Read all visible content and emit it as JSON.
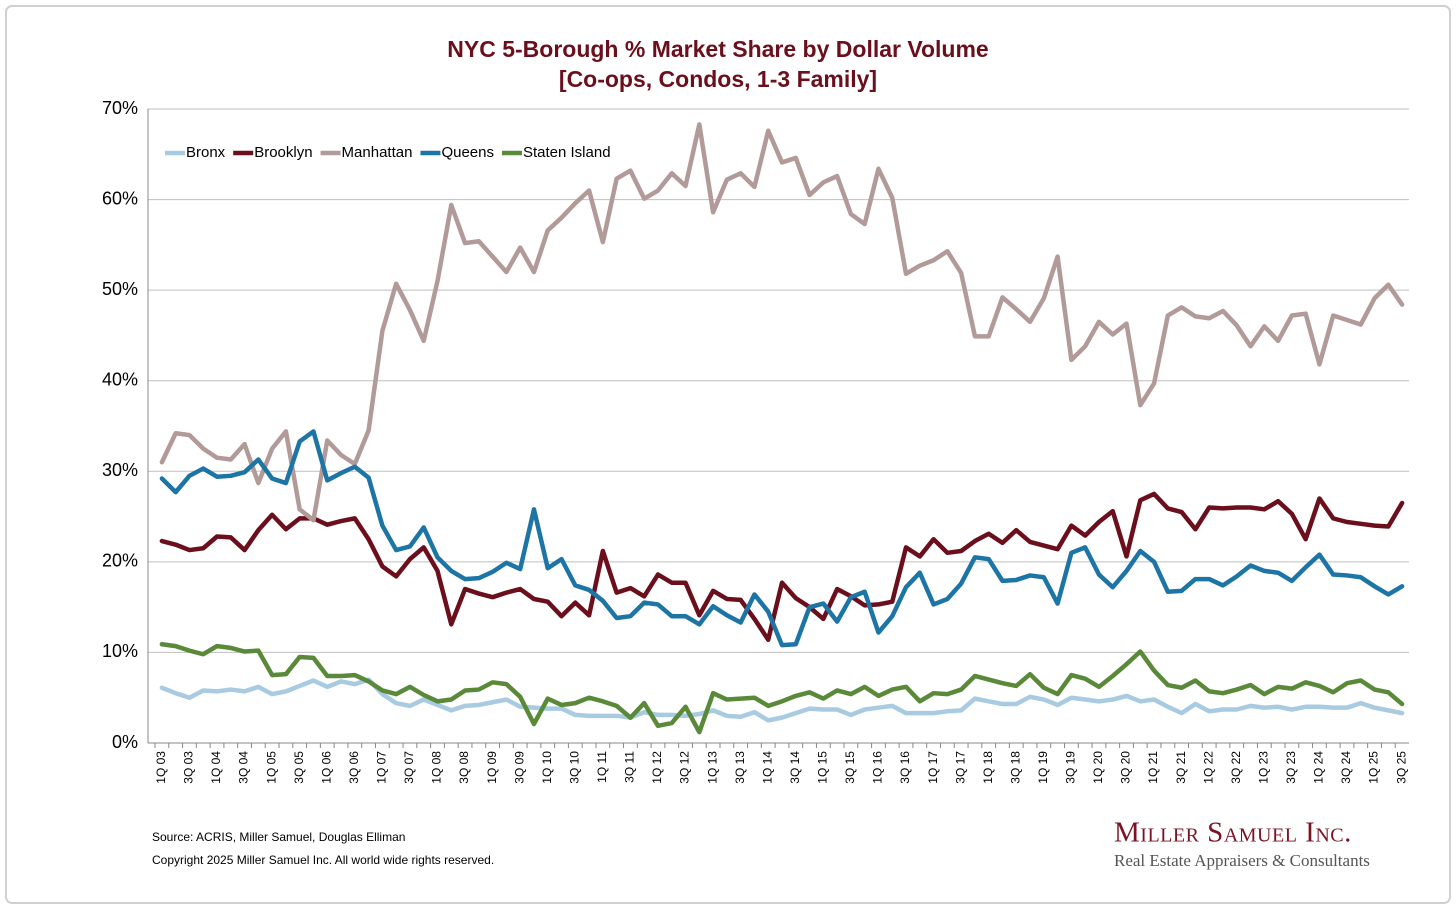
{
  "chart_data": {
    "type": "line",
    "title": "NYC 5-Borough % Market Share by Dollar Volume",
    "subtitle": "[Co-ops, Condos, 1-3 Family]",
    "source": "Source: ACRIS, Miller Samuel, Douglas Elliman",
    "copyright": "Copyright 2025 Miller Samuel Inc.  All world wide rights reserved.",
    "brand": "Miller Samuel Inc.",
    "brand_tagline": "Real Estate Appraisers & Consultants",
    "legend": "upper left",
    "grid": true,
    "categories": [
      "1Q 03",
      null,
      "3Q 03",
      null,
      "1Q 04",
      null,
      "3Q 04",
      null,
      "1Q 05",
      null,
      "3Q 05",
      null,
      "1Q 06",
      null,
      "3Q 06",
      null,
      "1Q 07",
      null,
      "3Q 07",
      null,
      "1Q 08",
      null,
      "3Q 08",
      null,
      "1Q 09",
      null,
      "3Q 09",
      null,
      "1Q 10",
      null,
      "3Q 10",
      null,
      "1Q 11",
      null,
      "3Q 11",
      null,
      "1Q 12",
      null,
      "3Q 12",
      null,
      "1Q 13",
      null,
      "3Q 13",
      null,
      "1Q 14",
      null,
      "3Q 14",
      null,
      "1Q 15",
      null,
      "3Q 15",
      null,
      "1Q 16",
      null,
      "3Q 16",
      null,
      "1Q 17",
      null,
      "3Q 17",
      null,
      "1Q 18",
      null,
      "3Q 18",
      null,
      "1Q 19",
      null,
      "3Q 19",
      null,
      "1Q 20",
      null,
      "3Q 20",
      null,
      "1Q 21",
      null,
      "3Q 21",
      null,
      "1Q 22",
      null,
      "3Q 22",
      null,
      "1Q 23",
      null,
      "3Q 23",
      null,
      "1Q 24",
      null,
      "3Q 24",
      null,
      "1Q 25",
      null,
      "3Q 25"
    ],
    "ylim": [
      0,
      70
    ],
    "yticks": [
      {
        "value": 0,
        "label": "0%"
      },
      {
        "value": 10,
        "label": "10%"
      },
      {
        "value": 20,
        "label": "20%"
      },
      {
        "value": 30,
        "label": "30%"
      },
      {
        "value": 40,
        "label": "40%"
      },
      {
        "value": 50,
        "label": "50%"
      },
      {
        "value": 60,
        "label": "60%"
      },
      {
        "value": 70,
        "label": "70%"
      }
    ],
    "series": [
      {
        "name": "Bronx",
        "color": "#a8cbe1",
        "values": [
          6.1,
          5.5,
          5,
          5.8,
          5.7,
          5.9,
          5.7,
          6.2,
          5.4,
          5.7,
          6.3,
          6.9,
          6.2,
          6.8,
          6.5,
          7,
          5.4,
          4.4,
          4.1,
          4.8,
          4.2,
          3.6,
          4.1,
          4.2,
          4.5,
          4.8,
          4,
          3.9,
          3.8,
          3.8,
          3.1,
          3,
          3,
          3,
          2.8,
          3.4,
          3.1,
          3.1,
          3,
          3.2,
          3.6,
          3,
          2.9,
          3.4,
          2.5,
          2.8,
          3.3,
          3.8,
          3.7,
          3.7,
          3.1,
          3.7,
          3.9,
          4.1,
          3.3,
          3.3,
          3.3,
          3.5,
          3.6,
          4.9,
          4.6,
          4.3,
          4.3,
          5.1,
          4.8,
          4.2,
          5,
          4.8,
          4.6,
          4.8,
          5.2,
          4.6,
          4.8,
          4,
          3.3,
          4.3,
          3.5,
          3.7,
          3.7,
          4.1,
          3.9,
          4,
          3.7,
          4,
          4,
          3.9,
          3.9,
          4.4,
          3.9,
          3.6,
          3.3
        ]
      },
      {
        "name": "Brooklyn",
        "color": "#6b0f1c",
        "values": [
          22.3,
          21.9,
          21.3,
          21.5,
          22.8,
          22.7,
          21.3,
          23.5,
          25.2,
          23.6,
          24.8,
          24.8,
          24.1,
          24.5,
          24.8,
          22.5,
          19.5,
          18.4,
          20.3,
          21.6,
          19,
          13.1,
          17,
          16.5,
          16.1,
          16.6,
          17,
          15.9,
          15.6,
          14,
          15.5,
          14.1,
          21.2,
          16.6,
          17.1,
          16.2,
          18.6,
          17.7,
          17.7,
          14.1,
          16.8,
          15.9,
          15.8,
          13.7,
          11.4,
          17.7,
          16,
          15,
          13.7,
          17,
          16.2,
          15.2,
          15.3,
          15.6,
          21.6,
          20.6,
          22.5,
          21,
          21.2,
          22.3,
          23.1,
          22.1,
          23.5,
          22.2,
          21.8,
          21.4,
          24,
          22.9,
          24.4,
          25.6,
          20.6,
          26.8,
          27.5,
          25.9,
          25.5,
          23.6,
          26,
          25.9,
          26,
          26,
          25.8,
          26.7,
          25.3,
          22.5,
          27,
          24.8,
          24.4,
          24.2,
          24,
          23.9,
          26.5
        ]
      },
      {
        "name": "Manhattan",
        "color": "#b19a98",
        "values": [
          31,
          34.2,
          34,
          32.5,
          31.5,
          31.3,
          33,
          28.7,
          32.5,
          34.4,
          25.8,
          24.6,
          33.4,
          31.8,
          30.8,
          34.5,
          45.5,
          50.7,
          47.8,
          44.4,
          51,
          59.4,
          55.2,
          55.4,
          53.7,
          52,
          54.7,
          52,
          56.6,
          58,
          59.6,
          61,
          55.3,
          62.3,
          63.2,
          60.1,
          61,
          62.9,
          61.5,
          68.3,
          58.6,
          62.2,
          62.9,
          61.4,
          67.6,
          64.1,
          64.6,
          60.5,
          61.9,
          62.6,
          58.4,
          57.3,
          63.4,
          60.2,
          51.8,
          52.7,
          53.3,
          54.3,
          51.9,
          44.9,
          44.9,
          49.2,
          47.9,
          46.5,
          49.1,
          53.7,
          42.3,
          43.8,
          46.5,
          45.1,
          46.3,
          37.3,
          39.7,
          47.2,
          48.1,
          47.1,
          46.9,
          47.7,
          46.1,
          43.8,
          46,
          44.4,
          47.2,
          47.4,
          41.8,
          47.2,
          46.7,
          46.2,
          49.1,
          50.6,
          48.4
        ]
      },
      {
        "name": "Queens",
        "color": "#1d75a6",
        "values": [
          29.2,
          27.7,
          29.5,
          30.3,
          29.4,
          29.5,
          29.9,
          31.3,
          29.2,
          28.7,
          33.3,
          34.4,
          29,
          29.8,
          30.5,
          29.3,
          24,
          21.3,
          21.7,
          23.8,
          20.5,
          19,
          18.1,
          18.2,
          18.9,
          19.9,
          19.2,
          25.8,
          19.3,
          20.3,
          17.4,
          16.9,
          15.7,
          13.8,
          14,
          15.5,
          15.3,
          14,
          14,
          13.1,
          15.1,
          14.1,
          13.3,
          16.4,
          14.5,
          10.8,
          10.9,
          15,
          15.4,
          13.4,
          16.1,
          16.7,
          12.2,
          14,
          17.2,
          18.8,
          15.3,
          15.9,
          17.6,
          20.5,
          20.3,
          17.9,
          18,
          18.5,
          18.3,
          15.4,
          21,
          21.6,
          18.6,
          17.2,
          19,
          21.2,
          20,
          16.7,
          16.8,
          18.1,
          18.1,
          17.4,
          18.4,
          19.6,
          19,
          18.8,
          17.9,
          19.4,
          20.8,
          18.6,
          18.5,
          18.3,
          17.3,
          16.4,
          17.3
        ]
      },
      {
        "name": "Staten Island",
        "color": "#5a8a39",
        "values": [
          10.9,
          10.7,
          10.2,
          9.8,
          10.7,
          10.5,
          10.1,
          10.2,
          7.5,
          7.6,
          9.5,
          9.4,
          7.4,
          7.4,
          7.5,
          6.8,
          5.8,
          5.4,
          6.2,
          5.3,
          4.6,
          4.8,
          5.8,
          5.9,
          6.7,
          6.5,
          5.1,
          2.1,
          4.9,
          4.2,
          4.4,
          5,
          4.6,
          4.1,
          2.8,
          4.4,
          1.9,
          2.2,
          4,
          1.2,
          5.5,
          4.8,
          4.9,
          5,
          4.1,
          4.6,
          5.2,
          5.6,
          4.9,
          5.8,
          5.4,
          6.2,
          5.2,
          5.9,
          6.2,
          4.6,
          5.5,
          5.4,
          5.9,
          7.4,
          7,
          6.6,
          6.3,
          7.6,
          6.1,
          5.4,
          7.5,
          7.1,
          6.2,
          7.4,
          8.7,
          10.1,
          8,
          6.4,
          6.1,
          6.9,
          5.7,
          5.5,
          5.9,
          6.4,
          5.4,
          6.2,
          6,
          6.7,
          6.3,
          5.6,
          6.6,
          6.9,
          5.9,
          5.6,
          4.3
        ]
      }
    ]
  }
}
